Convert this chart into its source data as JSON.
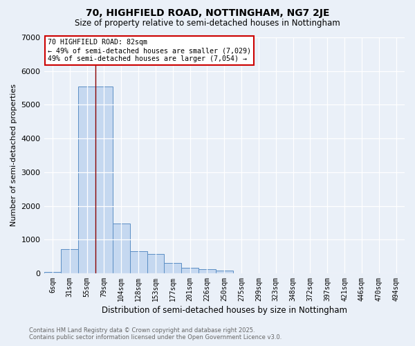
{
  "title": "70, HIGHFIELD ROAD, NOTTINGHAM, NG7 2JE",
  "subtitle": "Size of property relative to semi-detached houses in Nottingham",
  "xlabel": "Distribution of semi-detached houses by size in Nottingham",
  "ylabel": "Number of semi-detached properties",
  "categories": [
    "6sqm",
    "31sqm",
    "55sqm",
    "79sqm",
    "104sqm",
    "128sqm",
    "153sqm",
    "177sqm",
    "201sqm",
    "226sqm",
    "250sqm",
    "275sqm",
    "299sqm",
    "323sqm",
    "348sqm",
    "372sqm",
    "397sqm",
    "421sqm",
    "446sqm",
    "470sqm",
    "494sqm"
  ],
  "values": [
    50,
    720,
    5550,
    5550,
    1480,
    650,
    580,
    310,
    160,
    120,
    80,
    0,
    0,
    0,
    0,
    0,
    0,
    0,
    0,
    0,
    0
  ],
  "bar_color": "#c5d8f0",
  "bar_edge_color": "#5b8ec4",
  "vline_x": 2.5,
  "vline_color": "#8b0000",
  "annotation_title": "70 HIGHFIELD ROAD: 82sqm",
  "annotation_line1": "← 49% of semi-detached houses are smaller (7,029)",
  "annotation_line2": "49% of semi-detached houses are larger (7,054) →",
  "annotation_box_color": "#ffffff",
  "annotation_box_edge": "#cc0000",
  "footer_line1": "Contains HM Land Registry data © Crown copyright and database right 2025.",
  "footer_line2": "Contains public sector information licensed under the Open Government Licence v3.0.",
  "bg_color": "#eaf0f8",
  "plot_bg_color": "#eaf0f8",
  "grid_color": "#ffffff",
  "ylim": [
    0,
    7000
  ],
  "yticks": [
    0,
    1000,
    2000,
    3000,
    4000,
    5000,
    6000,
    7000
  ]
}
